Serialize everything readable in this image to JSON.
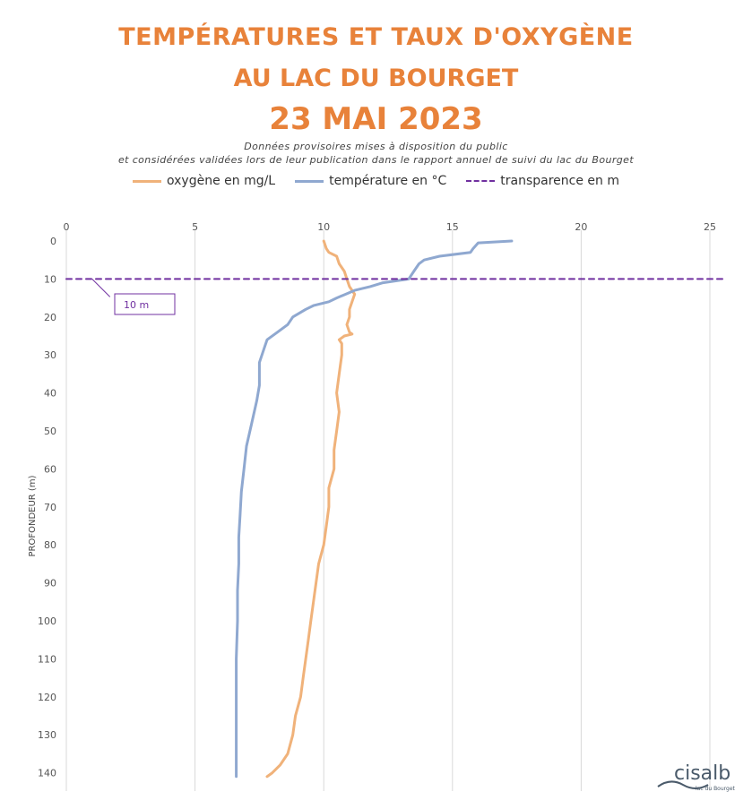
{
  "header": {
    "title_line1": "TEMPÉRATURES ET TAUX D'OXYGÈNE",
    "title_line2": "AU LAC DU BOURGET",
    "title_line3": "23 MAI 2023",
    "subtitle_line1": "Données provisoires mises à disposition du public",
    "subtitle_line2": "et considérées validées lors de leur publication dans le rapport annuel de suivi du lac du Bourget"
  },
  "legend": [
    {
      "label": "oxygène en mg/L",
      "color": "#f0b27a",
      "style": "solid"
    },
    {
      "label": "température en °C",
      "color": "#8fa8d0",
      "style": "solid"
    },
    {
      "label": "transparence en m",
      "color": "#7030a0",
      "style": "dashed"
    }
  ],
  "logo": {
    "name": "cisalb",
    "tagline": "lac du Bourget"
  },
  "chart_data": {
    "type": "line",
    "title": "TEMPÉRATURES ET TAUX D'OXYGÈNE AU LAC DU BOURGET 23 MAI 2023",
    "ylabel": "PROFONDEUR (m)",
    "xlabel": "",
    "xlim": [
      0,
      25
    ],
    "ylim": [
      0,
      140
    ],
    "y_inverted": true,
    "x_axis_position": "top",
    "x_ticks": [
      0,
      5,
      10,
      15,
      20,
      25
    ],
    "y_ticks": [
      0,
      10,
      20,
      30,
      40,
      50,
      60,
      70,
      80,
      90,
      100,
      110,
      120,
      130,
      140
    ],
    "grid": "vertical",
    "legend_position": "top",
    "series": [
      {
        "name": "oxygène en mg/L",
        "color": "#f0b27a",
        "points": [
          [
            10.0,
            0
          ],
          [
            10.1,
            2
          ],
          [
            10.2,
            3
          ],
          [
            10.5,
            4
          ],
          [
            10.6,
            6
          ],
          [
            10.8,
            8
          ],
          [
            10.9,
            10
          ],
          [
            11.0,
            12
          ],
          [
            11.2,
            14
          ],
          [
            11.1,
            16
          ],
          [
            11.0,
            18
          ],
          [
            11.0,
            20
          ],
          [
            10.9,
            22
          ],
          [
            11.0,
            24
          ],
          [
            11.1,
            24.5
          ],
          [
            10.8,
            25
          ],
          [
            10.6,
            26
          ],
          [
            10.7,
            27
          ],
          [
            10.7,
            30
          ],
          [
            10.6,
            35
          ],
          [
            10.5,
            40
          ],
          [
            10.6,
            45
          ],
          [
            10.5,
            50
          ],
          [
            10.4,
            55
          ],
          [
            10.4,
            60
          ],
          [
            10.2,
            65
          ],
          [
            10.2,
            70
          ],
          [
            10.1,
            75
          ],
          [
            10.0,
            80
          ],
          [
            9.8,
            85
          ],
          [
            9.7,
            90
          ],
          [
            9.6,
            95
          ],
          [
            9.5,
            100
          ],
          [
            9.4,
            105
          ],
          [
            9.3,
            110
          ],
          [
            9.2,
            115
          ],
          [
            9.1,
            120
          ],
          [
            8.9,
            125
          ],
          [
            8.8,
            130
          ],
          [
            8.6,
            135
          ],
          [
            8.3,
            138
          ],
          [
            8.0,
            140
          ],
          [
            7.8,
            141
          ]
        ]
      },
      {
        "name": "température en °C",
        "color": "#8fa8d0",
        "points": [
          [
            17.3,
            0
          ],
          [
            16.0,
            0.5
          ],
          [
            15.8,
            2
          ],
          [
            15.7,
            3
          ],
          [
            14.5,
            4
          ],
          [
            13.9,
            5
          ],
          [
            13.7,
            6
          ],
          [
            13.5,
            8
          ],
          [
            13.3,
            10
          ],
          [
            12.3,
            11
          ],
          [
            11.8,
            12
          ],
          [
            11.2,
            13
          ],
          [
            10.5,
            15
          ],
          [
            10.2,
            16
          ],
          [
            9.6,
            17
          ],
          [
            9.3,
            18
          ],
          [
            8.8,
            20
          ],
          [
            8.6,
            22
          ],
          [
            8.2,
            24
          ],
          [
            7.8,
            26
          ],
          [
            7.7,
            28
          ],
          [
            7.5,
            32
          ],
          [
            7.5,
            38
          ],
          [
            7.4,
            42
          ],
          [
            7.2,
            48
          ],
          [
            7.0,
            54
          ],
          [
            6.9,
            60
          ],
          [
            6.8,
            66
          ],
          [
            6.75,
            72
          ],
          [
            6.7,
            78
          ],
          [
            6.7,
            85
          ],
          [
            6.65,
            92
          ],
          [
            6.65,
            100
          ],
          [
            6.6,
            110
          ],
          [
            6.6,
            120
          ],
          [
            6.6,
            130
          ],
          [
            6.6,
            141
          ]
        ]
      },
      {
        "name": "transparence en m",
        "color": "#7030a0",
        "dashed": true,
        "points": [
          [
            0,
            10
          ],
          [
            25.5,
            10
          ]
        ]
      }
    ],
    "annotations": [
      {
        "text": "10 m",
        "x": 1,
        "y": 10
      }
    ]
  }
}
